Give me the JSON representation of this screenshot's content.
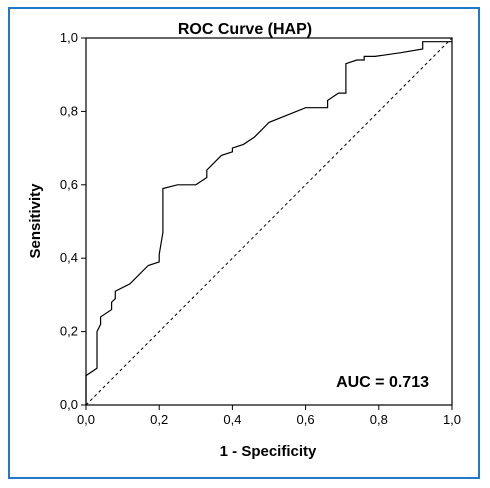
{
  "chart_data": {
    "type": "line",
    "title": "ROC Curve (HAP)",
    "xlabel": "1 - Specificity",
    "ylabel": "Sensitivity",
    "xlim": [
      0,
      1
    ],
    "ylim": [
      0,
      1
    ],
    "xticks": [
      "0,0",
      "0,2",
      "0,4",
      "0,6",
      "0,8",
      "1,0"
    ],
    "yticks": [
      "0,0",
      "0,2",
      "0,4",
      "0,6",
      "0,8",
      "1,0"
    ],
    "grid": false,
    "annotation": "AUC = 0.713",
    "series": [
      {
        "x": [
          0.0,
          0.0,
          0.03,
          0.03,
          0.04,
          0.04,
          0.07,
          0.07,
          0.08,
          0.08,
          0.12,
          0.17,
          0.17,
          0.2,
          0.2,
          0.21,
          0.21,
          0.25,
          0.3,
          0.33,
          0.33,
          0.37,
          0.4,
          0.4,
          0.43,
          0.46,
          0.48,
          0.5,
          0.55,
          0.6,
          0.66,
          0.66,
          0.69,
          0.71,
          0.71,
          0.74,
          0.76,
          0.76,
          0.79,
          0.86,
          0.92,
          0.92,
          1.0
        ],
        "y": [
          0.0,
          0.08,
          0.1,
          0.2,
          0.22,
          0.24,
          0.26,
          0.28,
          0.29,
          0.31,
          0.33,
          0.38,
          0.38,
          0.39,
          0.41,
          0.47,
          0.59,
          0.6,
          0.6,
          0.62,
          0.64,
          0.68,
          0.69,
          0.7,
          0.71,
          0.73,
          0.75,
          0.77,
          0.79,
          0.81,
          0.81,
          0.83,
          0.85,
          0.85,
          0.93,
          0.94,
          0.94,
          0.95,
          0.95,
          0.96,
          0.97,
          0.99,
          0.99
        ]
      },
      {
        "x": [
          0,
          1
        ],
        "y": [
          0,
          1
        ],
        "style": "dotted"
      }
    ]
  }
}
